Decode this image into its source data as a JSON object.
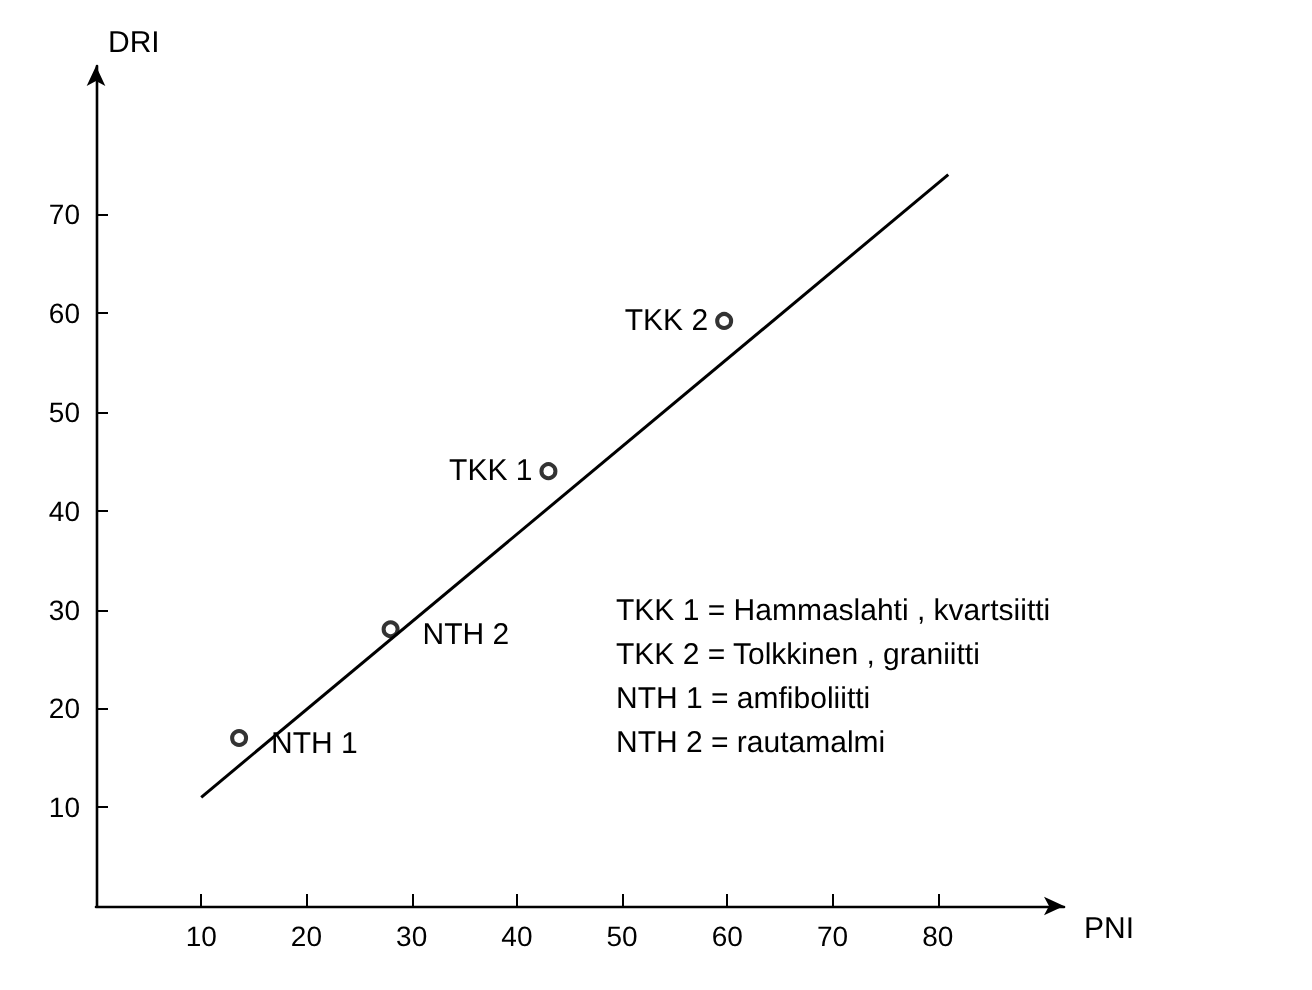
{
  "chart_data": {
    "type": "scatter",
    "xlabel": "PNI",
    "ylabel": "DRI",
    "xlim": [
      0,
      92
    ],
    "ylim": [
      0,
      85
    ],
    "xticks": [
      10,
      20,
      30,
      40,
      50,
      60,
      70,
      80
    ],
    "yticks": [
      10,
      20,
      30,
      40,
      50,
      60,
      70
    ],
    "grid": false,
    "marker": "circle",
    "series": [
      {
        "color": "#000000",
        "x": [
          13.6,
          28,
          43,
          59.7
        ],
        "values": [
          17,
          28,
          44,
          59.2
        ]
      },
      {
        "type": "line",
        "color": "#000000",
        "marker": "none",
        "line_style": "solid",
        "x": [
          10,
          81
        ],
        "values": [
          11,
          74
        ]
      }
    ],
    "annotations": [
      {
        "text": "NTH 1",
        "x": 13.6,
        "y": 17
      },
      {
        "text": "NTH 2",
        "x": 28,
        "y": 28
      },
      {
        "text": "TKK 1",
        "x": 43,
        "y": 44
      },
      {
        "text": "TKK 2",
        "x": 59.7,
        "y": 59.2
      },
      "TKK 1 = Hammaslahti , kvartsiitti",
      "TKK 2 = Tolkkinen , graniitti",
      "NTH 1 = amfiboliitti",
      "NTH 2 = rautamalmi"
    ]
  }
}
